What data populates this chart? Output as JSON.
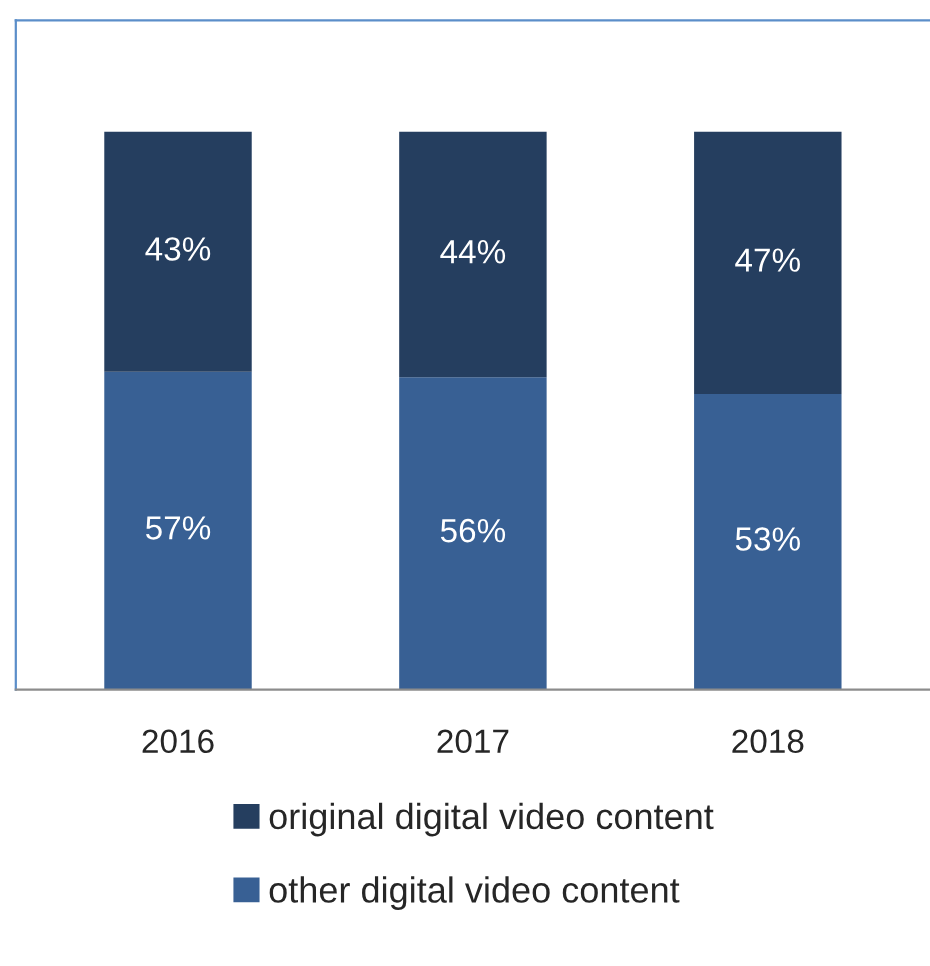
{
  "chart_data": {
    "type": "bar",
    "stacked": true,
    "categories": [
      "2016",
      "2017",
      "2018"
    ],
    "series": [
      {
        "name": "other digital video content",
        "color": "#386094",
        "values": [
          57,
          56,
          53
        ],
        "value_labels": [
          "57%",
          "56%",
          "53%"
        ]
      },
      {
        "name": "original digital video content",
        "color": "#253e5f",
        "values": [
          43,
          44,
          47
        ],
        "value_labels": [
          "43%",
          "44%",
          "47%"
        ]
      }
    ],
    "legend": "bottom",
    "grid": false,
    "tick_labels": "x"
  }
}
